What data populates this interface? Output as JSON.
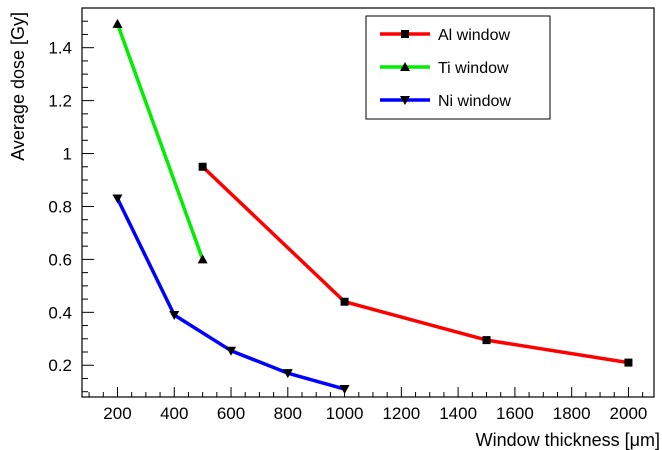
{
  "chart_data": {
    "type": "line",
    "xlabel": "Window thickness [μm]",
    "ylabel": "Average dose [Gy]",
    "xlim": [
      75,
      2090
    ],
    "ylim": [
      0.08,
      1.55
    ],
    "x_ticks": [
      200,
      400,
      600,
      800,
      1000,
      1200,
      1400,
      1600,
      1800,
      2000
    ],
    "y_ticks": [
      0.2,
      0.4,
      0.6,
      0.8,
      1,
      1.2,
      1.4
    ],
    "x_tick_labels": [
      "200",
      "400",
      "600",
      "800",
      "1000",
      "1200",
      "1400",
      "1600",
      "1800",
      "2000"
    ],
    "y_tick_labels": [
      "0.2",
      "0.4",
      "0.6",
      "0.8",
      "1",
      "1.2",
      "1.4"
    ],
    "grid": false,
    "legend_position": "top-right",
    "series": [
      {
        "name": "Al window",
        "color": "#ff0000",
        "marker": "square",
        "x": [
          500,
          1000,
          1500,
          2000
        ],
        "y": [
          0.95,
          0.44,
          0.295,
          0.21
        ]
      },
      {
        "name": "Ti window",
        "color": "#00ee00",
        "marker": "triangle-up",
        "x": [
          200,
          500
        ],
        "y": [
          1.49,
          0.6
        ]
      },
      {
        "name": "Ni window",
        "color": "#0000ff",
        "marker": "triangle-down",
        "x": [
          200,
          400,
          600,
          800,
          1000
        ],
        "y": [
          0.83,
          0.39,
          0.255,
          0.17,
          0.11
        ]
      }
    ]
  }
}
